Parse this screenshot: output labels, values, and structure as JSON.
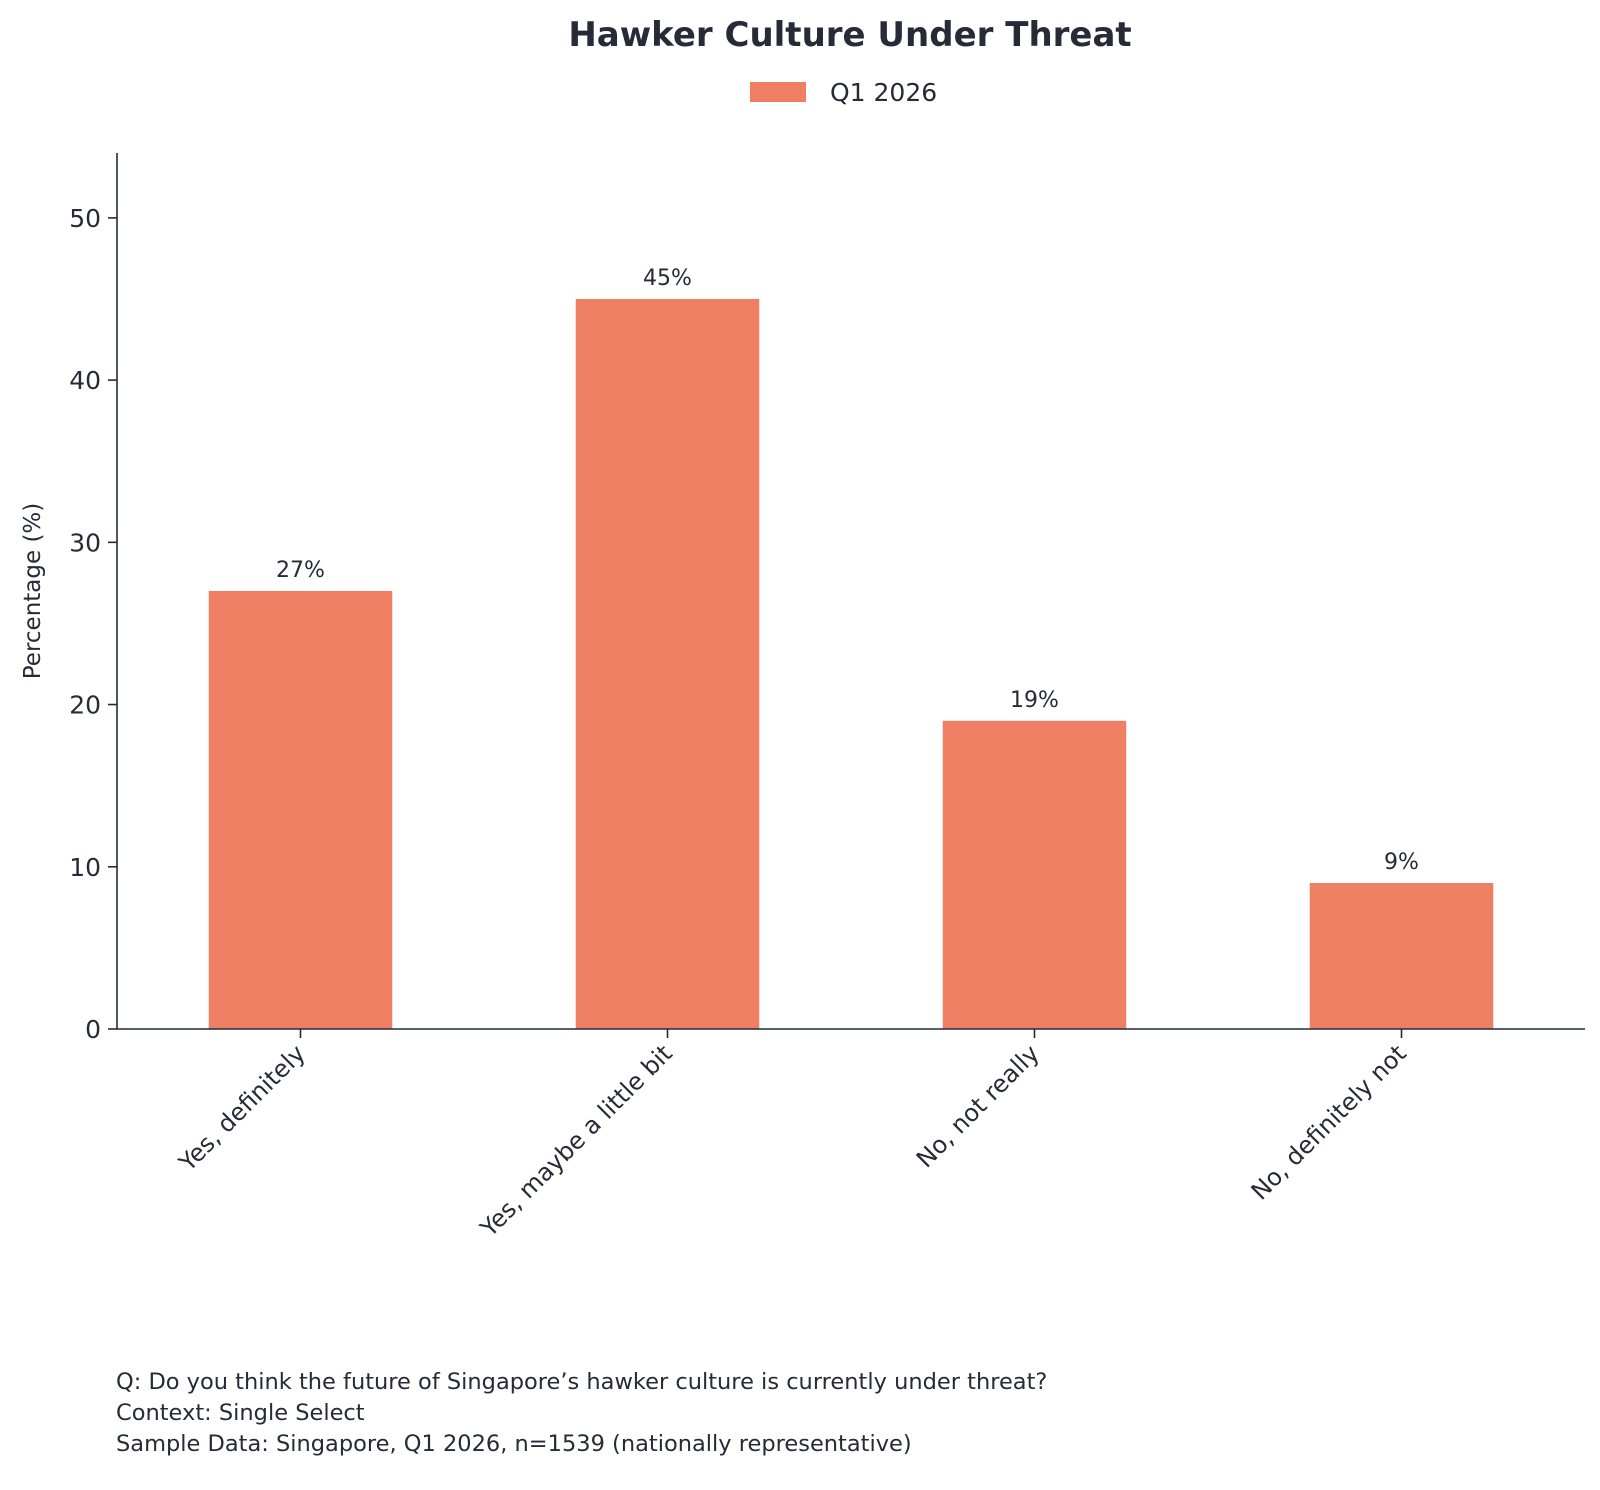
{
  "chart_data": {
    "type": "bar",
    "title": "Hawker Culture Under Threat",
    "legend": {
      "placement": "top-center"
    },
    "categories": [
      "Yes, definitely",
      "Yes, maybe a little bit",
      "No, not really",
      "No, definitely not"
    ],
    "series": [
      {
        "name": "Q1 2026",
        "values": [
          27,
          45,
          19,
          9
        ],
        "labels": [
          "27%",
          "45%",
          "19%",
          "9%"
        ],
        "color": "#ef7f62"
      }
    ],
    "xlabel": "",
    "ylabel": "Percentage (%)",
    "ylim": [
      0,
      54
    ],
    "yticks": [
      0,
      10,
      20,
      30,
      40,
      50
    ],
    "grid": false
  },
  "footnote": {
    "question": "Q: Do you think the future of Singapore’s hawker culture is currently under threat?",
    "context": "Context: Single Select",
    "sample": "Sample Data: Singapore, Q1 2026, n=1539 (nationally representative)"
  }
}
